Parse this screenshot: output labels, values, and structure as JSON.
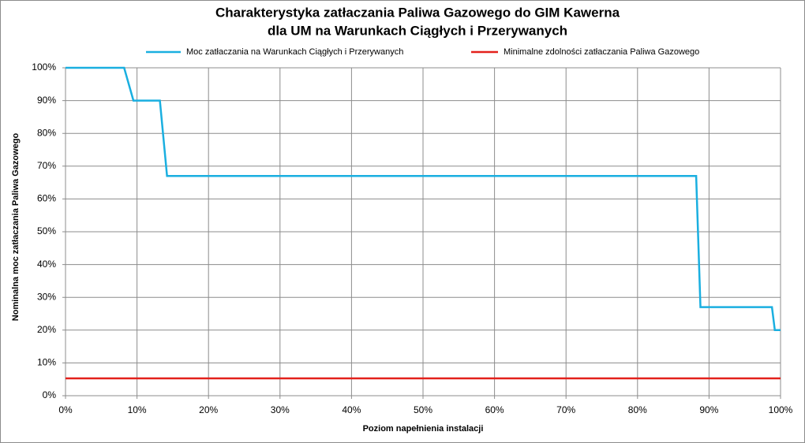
{
  "chart_data": {
    "type": "line",
    "title": [
      "Charakterystyka zatłaczania Paliwa Gazowego do GIM Kawerna",
      "dla UM na Warunkach Ciągłych i Przerywanych"
    ],
    "xlabel": "Poziom napełnienia instalacji",
    "ylabel": "Nominalna moc zatłaczania Paliwa Gazowego",
    "series": [
      {
        "name": "Moc zatłaczania na Warunkach Ciągłych i Przerywanych",
        "color": "#1aafe0",
        "x": [
          0,
          8.2,
          9.5,
          13.2,
          14.2,
          88.2,
          88.8,
          98.8,
          99.2,
          100
        ],
        "values": [
          100,
          100,
          90,
          90,
          67,
          67,
          27,
          27,
          20,
          20
        ]
      },
      {
        "name": "Minimalne zdolności zatłaczania Paliwa Gazowego",
        "color": "#e3211c",
        "x": [
          0,
          100
        ],
        "values": [
          5.3,
          5.3
        ]
      }
    ],
    "xlim": [
      0,
      100
    ],
    "xticks": [
      {
        "value": 0,
        "label": "0%"
      },
      {
        "value": 10,
        "label": "10%"
      },
      {
        "value": 20,
        "label": "20%"
      },
      {
        "value": 30,
        "label": "30%"
      },
      {
        "value": 40,
        "label": "40%"
      },
      {
        "value": 50,
        "label": "50%"
      },
      {
        "value": 60,
        "label": "60%"
      },
      {
        "value": 70,
        "label": "70%"
      },
      {
        "value": 80,
        "label": "80%"
      },
      {
        "value": 90,
        "label": "90%"
      },
      {
        "value": 100,
        "label": "100%"
      }
    ],
    "ylim": [
      0,
      100
    ],
    "yticks": [
      {
        "value": 0,
        "label": "0%"
      },
      {
        "value": 10,
        "label": "10%"
      },
      {
        "value": 20,
        "label": "20%"
      },
      {
        "value": 30,
        "label": "30%"
      },
      {
        "value": 40,
        "label": "40%"
      },
      {
        "value": 50,
        "label": "50%"
      },
      {
        "value": 60,
        "label": "60%"
      },
      {
        "value": 70,
        "label": "70%"
      },
      {
        "value": 80,
        "label": "80%"
      },
      {
        "value": 90,
        "label": "90%"
      },
      {
        "value": 100,
        "label": "100%"
      }
    ],
    "grid": true
  }
}
